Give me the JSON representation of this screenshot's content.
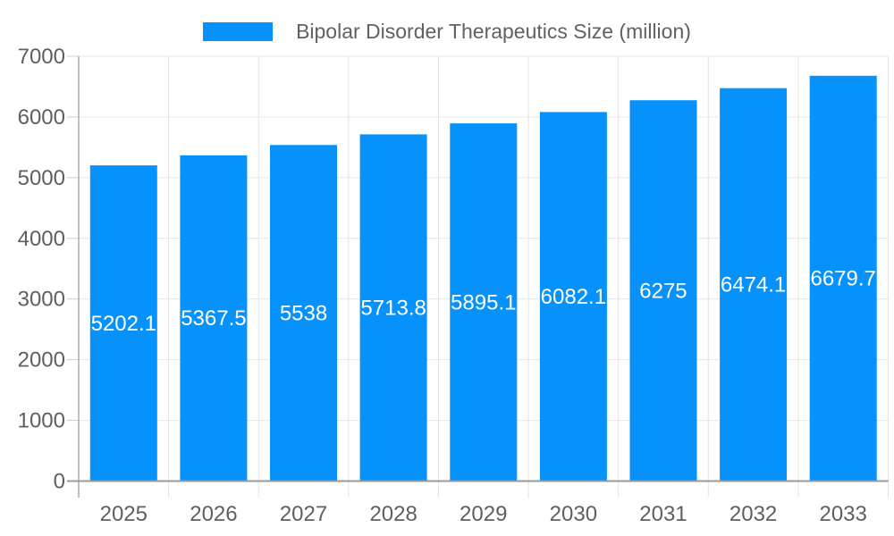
{
  "chart_data": {
    "type": "bar",
    "series_name": "Bipolar Disorder Therapeutics Size (million)",
    "categories": [
      "2025",
      "2026",
      "2027",
      "2028",
      "2029",
      "2030",
      "2031",
      "2032",
      "2033"
    ],
    "values": [
      5202.1,
      5367.5,
      5538,
      5713.8,
      5895.1,
      6082.1,
      6275,
      6474.1,
      6679.7
    ],
    "bar_labels": [
      "5202.1",
      "5367.5",
      "5538",
      "5713.8",
      "5895.1",
      "6082.1",
      "6275",
      "6474.1",
      "6679.7"
    ],
    "ylim": [
      0,
      7000
    ],
    "ytick_interval": 1000,
    "ytick_labels": [
      "0",
      "1000",
      "2000",
      "3000",
      "4000",
      "5000",
      "6000",
      "7000"
    ],
    "grid": true,
    "legend_position": "top-center",
    "colors": {
      "bar": "#0692fa",
      "h_gridline": "#e6e6e6",
      "v_gridline": "#e3e3e3",
      "y_axis_line": "#ababab",
      "x_axis_line": "#999999",
      "tick": "#cccccc",
      "axis_label": "#5f5f5f",
      "legend_text": "#616161",
      "bar_label": "#ffffff",
      "background": "#ffffff"
    }
  }
}
